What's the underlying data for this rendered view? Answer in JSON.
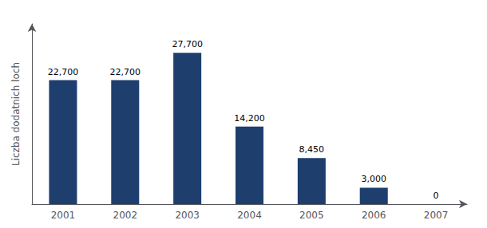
{
  "chart_data": {
    "type": "bar",
    "categories": [
      "2001",
      "2002",
      "2003",
      "2004",
      "2005",
      "2006",
      "2007"
    ],
    "values": [
      22700,
      22700,
      27700,
      14200,
      8450,
      3000,
      0
    ],
    "value_labels": [
      "22,700",
      "22,700",
      "27,700",
      "14,200",
      "8,450",
      "3,000",
      "0"
    ],
    "color": "#1e3f6e",
    "ylabel": "Liczba dodatnich loch",
    "ylim": [
      0,
      33000
    ],
    "grid": false,
    "data_labels": true,
    "tick_labels": "x"
  }
}
